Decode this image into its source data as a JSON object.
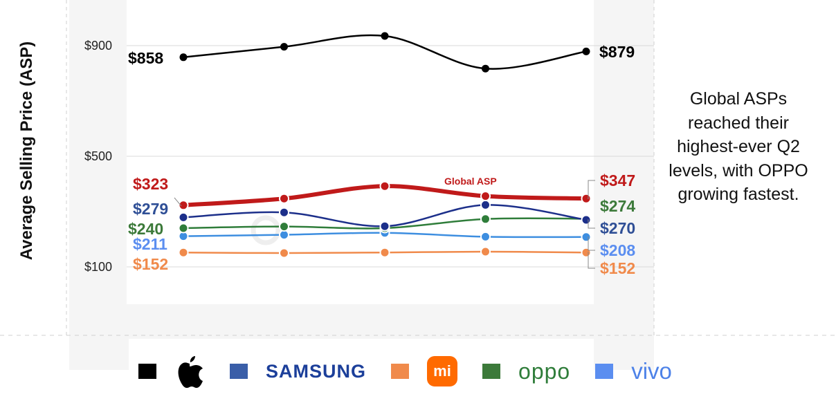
{
  "chart_data": {
    "type": "line",
    "ylabel": "Average Selling Price (ASP)",
    "ylim": [
      100,
      900
    ],
    "yticks": [
      "$100",
      "$500",
      "$900"
    ],
    "ytick_values": [
      100,
      500,
      900
    ],
    "x": [
      1,
      2,
      3,
      4,
      5
    ],
    "grid": "horizontal",
    "series": [
      {
        "name": "Apple",
        "color": "#000000",
        "width": 2.5,
        "values": [
          858,
          896,
          935,
          817,
          879
        ],
        "start_label": "$858",
        "end_label": "$879",
        "label_color": "#000000",
        "end_connector": false
      },
      {
        "name": "Global ASP",
        "color": "#c01a1a",
        "width": 6,
        "values": [
          323,
          347,
          392,
          356,
          347
        ],
        "start_label": "$323",
        "end_label": "$347",
        "label_color": "#c01a1a",
        "end_connector": true,
        "inline_label": "Global ASP"
      },
      {
        "name": "Samsung",
        "color": "#1c2f8a",
        "width": 2.5,
        "values": [
          279,
          297,
          247,
          324,
          270
        ],
        "start_label": "$279",
        "end_label": "$270",
        "label_color": "#2f4f96",
        "end_connector": true
      },
      {
        "name": "OPPO",
        "color": "#2f7d3a",
        "width": 2.5,
        "values": [
          240,
          246,
          240,
          273,
          274
        ],
        "start_label": "$240",
        "end_label": "$274",
        "label_color": "#3c7a3a",
        "end_connector": false
      },
      {
        "name": "vivo",
        "color": "#3d8ee0",
        "width": 2.5,
        "values": [
          211,
          216,
          223,
          209,
          208
        ],
        "start_label": "$211",
        "end_label": "$208",
        "label_color": "#5b8ef0",
        "end_connector": true
      },
      {
        "name": "Xiaomi",
        "color": "#f08a4b",
        "width": 2.5,
        "values": [
          152,
          150,
          152,
          155,
          152
        ],
        "start_label": "$152",
        "end_label": "$152",
        "label_color": "#f08a4b",
        "end_connector": true
      }
    ],
    "legend": {
      "placement": "bottom",
      "items": [
        {
          "brand": "apple",
          "swatch_color": "#000000",
          "text": ""
        },
        {
          "brand": "samsung",
          "swatch_color": "#3a5ea8",
          "text": "SAMSUNG"
        },
        {
          "brand": "xiaomi",
          "swatch_color": "#f08a4b",
          "text": "mi"
        },
        {
          "brand": "oppo",
          "swatch_color": "#3c7a3a",
          "text": "oppo"
        },
        {
          "brand": "vivo",
          "swatch_color": "#5b8ef0",
          "text": "vivo"
        }
      ]
    }
  },
  "annotation": "Global ASPs reached their highest-ever Q2 levels, with OPPO growing fastest.",
  "colors": {
    "grid": "#d9d9d9",
    "background_band": "#f2f2f2",
    "note_text": "#111111"
  }
}
